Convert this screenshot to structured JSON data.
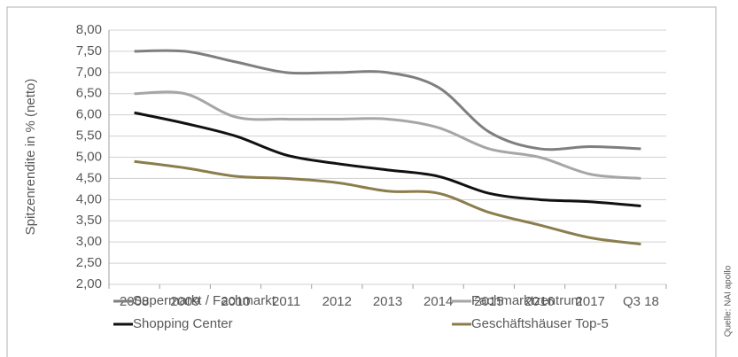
{
  "chart_data": {
    "type": "line",
    "y_label": "Spitzenrendite in % (netto)",
    "source": "Quelle: NAI apollo",
    "categories": [
      "2008",
      "2009",
      "2010",
      "2011",
      "2012",
      "2013",
      "2014",
      "2015",
      "2016",
      "2017",
      "Q3 18"
    ],
    "series": [
      {
        "name": "Supermarkt / Fachmarkt",
        "color": "#7f7f7f",
        "values": [
          7.5,
          7.5,
          7.25,
          7.0,
          7.0,
          7.0,
          6.65,
          5.6,
          5.2,
          5.25,
          5.2
        ]
      },
      {
        "name": "Fachmarktzentrum",
        "color": "#a6a6a6",
        "values": [
          6.5,
          6.5,
          5.95,
          5.9,
          5.9,
          5.9,
          5.7,
          5.2,
          5.0,
          4.6,
          4.5
        ]
      },
      {
        "name": "Shopping Center",
        "color": "#111111",
        "values": [
          6.05,
          5.8,
          5.5,
          5.05,
          4.85,
          4.7,
          4.55,
          4.15,
          4.0,
          3.95,
          3.85
        ]
      },
      {
        "name": "Geschäftshäuser Top-5",
        "color": "#8b7d4c",
        "values": [
          4.9,
          4.75,
          4.55,
          4.5,
          4.4,
          4.2,
          4.15,
          3.7,
          3.4,
          3.1,
          2.95
        ]
      }
    ],
    "ylim": [
      2,
      8
    ],
    "yticks": [
      {
        "value": 2,
        "label": "2,00"
      },
      {
        "value": 2.5,
        "label": "2,50"
      },
      {
        "value": 3,
        "label": "3,00"
      },
      {
        "value": 3.5,
        "label": "3,50"
      },
      {
        "value": 4,
        "label": "4,00"
      },
      {
        "value": 4.5,
        "label": "4,50"
      },
      {
        "value": 5,
        "label": "5,00"
      },
      {
        "value": 5.5,
        "label": "5,50"
      },
      {
        "value": 6,
        "label": "6,00"
      },
      {
        "value": 6.5,
        "label": "6,50"
      },
      {
        "value": 7,
        "label": "7,00"
      },
      {
        "value": 7.5,
        "label": "7,50"
      },
      {
        "value": 8,
        "label": "8,00"
      }
    ],
    "grid": true
  }
}
